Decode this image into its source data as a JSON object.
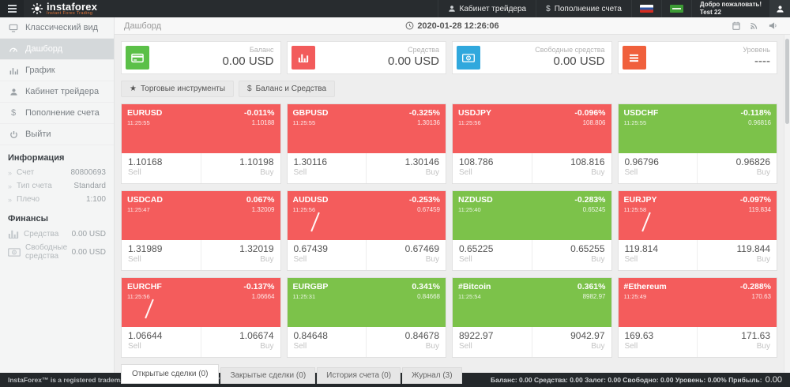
{
  "topbar": {
    "brand": {
      "name": "instaforex",
      "tagline": "Instant Forex Trading"
    },
    "items": [
      {
        "id": "trader-cabinet",
        "icon": "user-icon",
        "label": "Кабинет трейдера"
      },
      {
        "id": "deposit",
        "icon": "dollar-icon",
        "label": "Пополнение счета"
      }
    ],
    "flags": [
      "flag-ru-icon",
      "flag-green-icon"
    ],
    "welcome": {
      "line1": "Добро пожаловать!",
      "line2": "Test 22"
    }
  },
  "sidebar": {
    "menu": [
      {
        "id": "classic-view",
        "icon": "desktop-icon",
        "label": "Классический вид",
        "active": false
      },
      {
        "id": "dashboard",
        "icon": "dashboard-icon",
        "label": "Дашборд",
        "active": true
      },
      {
        "id": "chart",
        "icon": "chart-icon",
        "label": "График",
        "active": false
      },
      {
        "id": "trader-cabinet",
        "icon": "user-icon",
        "label": "Кабинет трейдера",
        "active": false
      },
      {
        "id": "deposit",
        "icon": "dollar-icon",
        "label": "Пополнение счета",
        "active": false
      },
      {
        "id": "logout",
        "icon": "power-icon",
        "label": "Выйти",
        "active": false
      }
    ],
    "info_header": "Информация",
    "info": [
      {
        "label": "Счет",
        "value": "80800693"
      },
      {
        "label": "Тип счета",
        "value": "Standard"
      },
      {
        "label": "Плечо",
        "value": "1:100"
      }
    ],
    "finance_header": "Финансы",
    "finance": [
      {
        "icon": "bar-chart-icon",
        "label": "Средства",
        "value": "0.00 USD"
      },
      {
        "icon": "money-icon",
        "label": "Свободные средства",
        "value": "0.00 USD"
      }
    ]
  },
  "breadcrumb": {
    "title": "Дашборд",
    "datetime": "2020-01-28 12:26:06"
  },
  "stat_cards": [
    {
      "id": "balance",
      "icon": "credit-card-icon",
      "color": "#5bc048",
      "label": "Баланс",
      "value": "0.00 USD"
    },
    {
      "id": "equity",
      "icon": "bar-chart-icon",
      "color": "#f25b5b",
      "label": "Средства",
      "value": "0.00 USD"
    },
    {
      "id": "free-margin",
      "icon": "money-icon",
      "color": "#30a8dd",
      "label": "Свободные средства",
      "value": "0.00 USD"
    },
    {
      "id": "level",
      "icon": "list-icon",
      "color": "#f0603c",
      "label": "Уровень",
      "value": "----"
    }
  ],
  "toolbar": [
    {
      "id": "trading-instruments",
      "icon": "star-icon",
      "label": "Торговые инструменты"
    },
    {
      "id": "balance-equity",
      "icon": "dollar-icon",
      "label": "Баланс и Средства"
    }
  ],
  "tiles": {
    "labels": {
      "sell": "Sell",
      "buy": "Buy"
    },
    "items": [
      {
        "symbol": "EURUSD",
        "time": "11:25:55",
        "change": "-0.011%",
        "last": "1.10188",
        "sell": "1.10168",
        "buy": "1.10198",
        "color": "red",
        "spark": false
      },
      {
        "symbol": "GBPUSD",
        "time": "11:25:55",
        "change": "-0.325%",
        "last": "1.30136",
        "sell": "1.30116",
        "buy": "1.30146",
        "color": "red",
        "spark": false
      },
      {
        "symbol": "USDJPY",
        "time": "11:25:56",
        "change": "-0.096%",
        "last": "108.806",
        "sell": "108.786",
        "buy": "108.816",
        "color": "red",
        "spark": false
      },
      {
        "symbol": "USDCHF",
        "time": "11:25:55",
        "change": "-0.118%",
        "last": "0.96816",
        "sell": "0.96796",
        "buy": "0.96826",
        "color": "green",
        "spark": false
      },
      {
        "symbol": "USDCAD",
        "time": "11:25:47",
        "change": "0.067%",
        "last": "1.32009",
        "sell": "1.31989",
        "buy": "1.32019",
        "color": "red",
        "spark": false
      },
      {
        "symbol": "AUDUSD",
        "time": "11:25:56",
        "change": "-0.253%",
        "last": "0.67459",
        "sell": "0.67439",
        "buy": "0.67469",
        "color": "red",
        "spark": true
      },
      {
        "symbol": "NZDUSD",
        "time": "11:25:40",
        "change": "-0.283%",
        "last": "0.65245",
        "sell": "0.65225",
        "buy": "0.65255",
        "color": "green",
        "spark": false
      },
      {
        "symbol": "EURJPY",
        "time": "11:25:58",
        "change": "-0.097%",
        "last": "119.834",
        "sell": "119.814",
        "buy": "119.844",
        "color": "red",
        "spark": true
      },
      {
        "symbol": "EURCHF",
        "time": "11:25:56",
        "change": "-0.137%",
        "last": "1.06664",
        "sell": "1.06644",
        "buy": "1.06674",
        "color": "red",
        "spark": true
      },
      {
        "symbol": "EURGBP",
        "time": "11:25:31",
        "change": "0.341%",
        "last": "0.84668",
        "sell": "0.84648",
        "buy": "0.84678",
        "color": "green",
        "spark": false
      },
      {
        "symbol": "#Bitcoin",
        "time": "11:25:54",
        "change": "0.361%",
        "last": "8982.97",
        "sell": "8922.97",
        "buy": "9042.97",
        "color": "green",
        "spark": false
      },
      {
        "symbol": "#Ethereum",
        "time": "11:25:49",
        "change": "-0.288%",
        "last": "170.63",
        "sell": "169.63",
        "buy": "171.63",
        "color": "red",
        "spark": false
      }
    ]
  },
  "tabs": [
    {
      "id": "open-trades",
      "label": "Открытые сделки (0)",
      "active": true
    },
    {
      "id": "closed-trades",
      "label": "Закрытые сделки (0)",
      "active": false
    },
    {
      "id": "account-history",
      "label": "История счета (0)",
      "active": false
    },
    {
      "id": "journal",
      "label": "Журнал (3)",
      "active": false
    }
  ],
  "footer": {
    "left": "InstaForex™ is a registered trademark of InstaForex Group © 2007-2020",
    "stats": "Баланс: 0.00 Средства: 0.00 Залог: 0.00 Свободно: 0.00 Уровень: 0.00% Прибыль:",
    "profit": "0.00"
  }
}
